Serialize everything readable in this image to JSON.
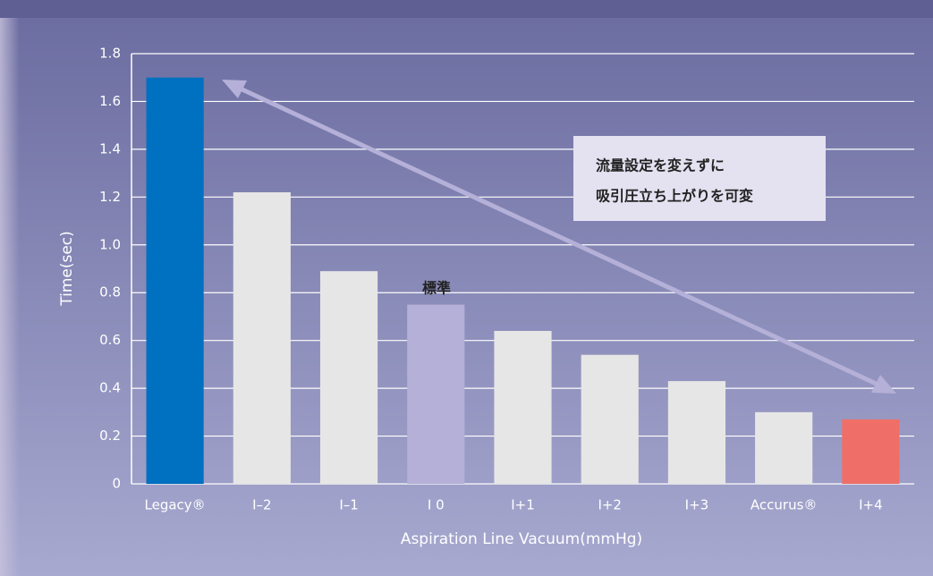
{
  "chart_data": {
    "type": "bar",
    "x_label": "Aspiration Line Vacuum(mmHg)",
    "y_label": "Time(sec)",
    "categories": [
      "Legacy®",
      "I–2",
      "I–1",
      "I 0",
      "I+1",
      "I+2",
      "I+3",
      "Accurus®",
      "I+4"
    ],
    "values": [
      1.7,
      1.22,
      0.89,
      0.75,
      0.64,
      0.54,
      0.43,
      0.3,
      0.27
    ],
    "colors": [
      "#0070c0",
      "#e6e6e6",
      "#e6e6e6",
      "#b4b0d8",
      "#e6e6e6",
      "#e6e6e6",
      "#e6e6e6",
      "#e6e6e6",
      "#ef6f68"
    ],
    "ylim": [
      0,
      1.8
    ],
    "yticks": [
      0,
      0.2,
      0.4,
      0.6,
      0.8,
      {
        "value": 1,
        "label": "1.0"
      },
      1.2,
      1.4,
      1.6,
      1.8
    ],
    "grid": true,
    "annotations": {
      "standard": "標準",
      "note_line1": "流量設定を変えずに",
      "note_line2": "吸引圧立ち上がりを可変"
    }
  }
}
